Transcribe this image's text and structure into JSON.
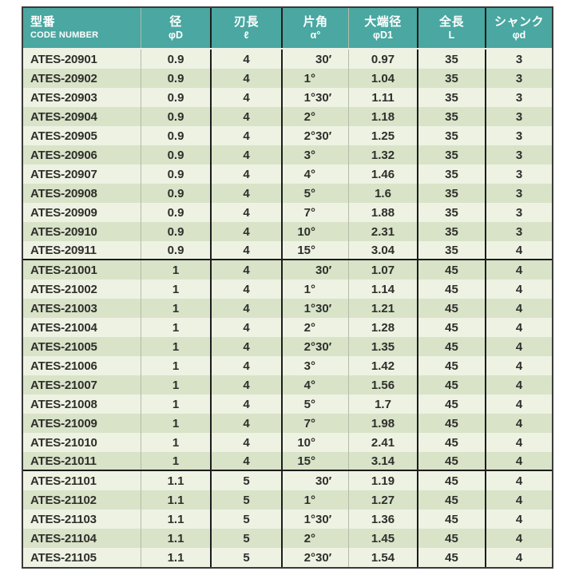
{
  "table": {
    "columns": [
      {
        "label": "型番",
        "sublabel": "CODE NUMBER"
      },
      {
        "label": "径",
        "sublabel": "φD"
      },
      {
        "label": "刃長",
        "sublabel": "ℓ"
      },
      {
        "label": "片角",
        "sublabel": "α°"
      },
      {
        "label": "大端径",
        "sublabel": "φD1"
      },
      {
        "label": "全長",
        "sublabel": "L"
      },
      {
        "label": "シャンク",
        "sublabel": "φd"
      }
    ],
    "row_fields": [
      "code_number",
      "dia_phiD",
      "flute_length_l",
      "half_angle_alpha",
      "large_end_dia_phiD1",
      "overall_length_L",
      "shank_dia_phid"
    ],
    "blocks": [
      [
        [
          "ATES-20901",
          "0.9",
          "4",
          "30′",
          "0.97",
          "35",
          "3"
        ],
        [
          "ATES-20902",
          "0.9",
          "4",
          "1°",
          "1.04",
          "35",
          "3"
        ],
        [
          "ATES-20903",
          "0.9",
          "4",
          "1°30′",
          "1.11",
          "35",
          "3"
        ],
        [
          "ATES-20904",
          "0.9",
          "4",
          "2°",
          "1.18",
          "35",
          "3"
        ],
        [
          "ATES-20905",
          "0.9",
          "4",
          "2°30′",
          "1.25",
          "35",
          "3"
        ],
        [
          "ATES-20906",
          "0.9",
          "4",
          "3°",
          "1.32",
          "35",
          "3"
        ],
        [
          "ATES-20907",
          "0.9",
          "4",
          "4°",
          "1.46",
          "35",
          "3"
        ],
        [
          "ATES-20908",
          "0.9",
          "4",
          "5°",
          "1.6",
          "35",
          "3"
        ],
        [
          "ATES-20909",
          "0.9",
          "4",
          "7°",
          "1.88",
          "35",
          "3"
        ],
        [
          "ATES-20910",
          "0.9",
          "4",
          "10°",
          "2.31",
          "35",
          "3"
        ],
        [
          "ATES-20911",
          "0.9",
          "4",
          "15°",
          "3.04",
          "35",
          "4"
        ]
      ],
      [
        [
          "ATES-21001",
          "1",
          "4",
          "30′",
          "1.07",
          "45",
          "4"
        ],
        [
          "ATES-21002",
          "1",
          "4",
          "1°",
          "1.14",
          "45",
          "4"
        ],
        [
          "ATES-21003",
          "1",
          "4",
          "1°30′",
          "1.21",
          "45",
          "4"
        ],
        [
          "ATES-21004",
          "1",
          "4",
          "2°",
          "1.28",
          "45",
          "4"
        ],
        [
          "ATES-21005",
          "1",
          "4",
          "2°30′",
          "1.35",
          "45",
          "4"
        ],
        [
          "ATES-21006",
          "1",
          "4",
          "3°",
          "1.42",
          "45",
          "4"
        ],
        [
          "ATES-21007",
          "1",
          "4",
          "4°",
          "1.56",
          "45",
          "4"
        ],
        [
          "ATES-21008",
          "1",
          "4",
          "5°",
          "1.7",
          "45",
          "4"
        ],
        [
          "ATES-21009",
          "1",
          "4",
          "7°",
          "1.98",
          "45",
          "4"
        ],
        [
          "ATES-21010",
          "1",
          "4",
          "10°",
          "2.41",
          "45",
          "4"
        ],
        [
          "ATES-21011",
          "1",
          "4",
          "15°",
          "3.14",
          "45",
          "4"
        ]
      ],
      [
        [
          "ATES-21101",
          "1.1",
          "5",
          "30′",
          "1.19",
          "45",
          "4"
        ],
        [
          "ATES-21102",
          "1.1",
          "5",
          "1°",
          "1.27",
          "45",
          "4"
        ],
        [
          "ATES-21103",
          "1.1",
          "5",
          "1°30′",
          "1.36",
          "45",
          "4"
        ],
        [
          "ATES-21104",
          "1.1",
          "5",
          "2°",
          "1.45",
          "45",
          "4"
        ],
        [
          "ATES-21105",
          "1.1",
          "5",
          "2°30′",
          "1.54",
          "45",
          "4"
        ]
      ]
    ]
  },
  "colors": {
    "header_background": "#4aa7a1",
    "header_text": "#ffffff",
    "row_light": "#eef2e3",
    "row_dark": "#d8e3c8",
    "cell_text": "#2f2f2b",
    "grid_dark_line": "#1c1c1c",
    "grid_light_line": "#b4bca9"
  }
}
